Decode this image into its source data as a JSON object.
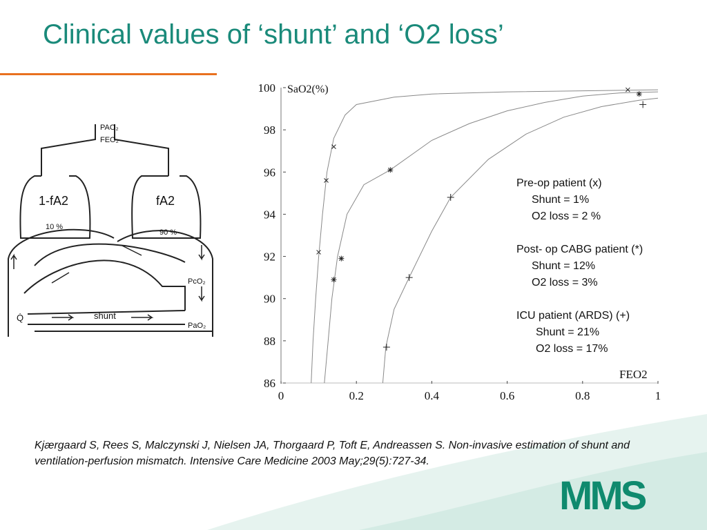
{
  "slide": {
    "title": "Clinical values of ‘shunt’ and ‘O2 loss’",
    "accent_color": "#1a8a7a",
    "rule_color": "#e8701e"
  },
  "diagram": {
    "pao2_label": "PAO₂",
    "feo2_label": "FEO₂",
    "left_compartment": "1-fA2",
    "right_compartment": "fA2",
    "left_percent": "10 %",
    "right_percent": "90 %",
    "pco2_label": "PcO₂",
    "pao2_arterial_label": "PaO₂",
    "q_label": "Q̇",
    "shunt_label": "shunt"
  },
  "legend": {
    "preop_title": "Pre-op patient (x)",
    "preop_shunt": "Shunt = 1%",
    "preop_loss": "O2 loss = 2 %",
    "postop_title": "Post- op CABG patient (*)",
    "postop_shunt": "Shunt = 12%",
    "postop_loss": "O2 loss = 3%",
    "icu_title": "ICU patient (ARDS) (+)",
    "icu_shunt": "Shunt = 21%",
    "icu_loss": "O2 loss = 17%"
  },
  "citation": "Kjærgaard S, Rees S, Malczynski J, Nielsen JA, Thorgaard P, Toft E, Andreassen S. Non-invasive estimation of shunt and ventilation-perfusion mismatch. Intensive Care Medicine 2003 May;29(5):727-34.",
  "logo_text": "MMS",
  "logo_color": "#0f8a6e",
  "chart_data": {
    "type": "scatter",
    "ylabel": "SaO2(%)",
    "xlabel": "FEO2",
    "xlim": [
      0,
      1
    ],
    "ylim": [
      86,
      100
    ],
    "xticks": [
      "0",
      "0.2",
      "0.4",
      "0.6",
      "0.8",
      "1"
    ],
    "yticks": [
      "86",
      "88",
      "90",
      "92",
      "94",
      "96",
      "98",
      "100"
    ],
    "series": [
      {
        "marker": "x",
        "points": [
          [
            0.1,
            92.2
          ],
          [
            0.12,
            95.6
          ],
          [
            0.14,
            97.2
          ],
          [
            0.92,
            99.9
          ]
        ],
        "curve": [
          [
            0.08,
            86
          ],
          [
            0.085,
            88
          ],
          [
            0.092,
            90
          ],
          [
            0.1,
            92
          ],
          [
            0.11,
            94
          ],
          [
            0.122,
            96
          ],
          [
            0.14,
            97.6
          ],
          [
            0.17,
            98.7
          ],
          [
            0.2,
            99.2
          ],
          [
            0.3,
            99.55
          ],
          [
            0.4,
            99.7
          ],
          [
            0.6,
            99.8
          ],
          [
            0.8,
            99.85
          ],
          [
            1.0,
            99.9
          ]
        ]
      },
      {
        "marker": "*",
        "points": [
          [
            0.14,
            90.9
          ],
          [
            0.16,
            91.9
          ],
          [
            0.29,
            96.1
          ],
          [
            0.95,
            99.7
          ]
        ],
        "curve": [
          [
            0.115,
            86
          ],
          [
            0.125,
            88
          ],
          [
            0.135,
            90
          ],
          [
            0.15,
            92
          ],
          [
            0.175,
            94
          ],
          [
            0.22,
            95.4
          ],
          [
            0.29,
            96.1
          ],
          [
            0.4,
            97.5
          ],
          [
            0.5,
            98.3
          ],
          [
            0.6,
            98.9
          ],
          [
            0.7,
            99.3
          ],
          [
            0.8,
            99.6
          ],
          [
            0.9,
            99.75
          ],
          [
            1.0,
            99.8
          ]
        ]
      },
      {
        "marker": "+",
        "points": [
          [
            0.28,
            87.7
          ],
          [
            0.34,
            91.0
          ],
          [
            0.45,
            94.8
          ],
          [
            0.96,
            99.2
          ]
        ],
        "curve": [
          [
            0.27,
            86
          ],
          [
            0.278,
            87.7
          ],
          [
            0.3,
            89.5
          ],
          [
            0.34,
            91.0
          ],
          [
            0.4,
            93.2
          ],
          [
            0.45,
            94.8
          ],
          [
            0.55,
            96.6
          ],
          [
            0.65,
            97.8
          ],
          [
            0.75,
            98.6
          ],
          [
            0.85,
            99.1
          ],
          [
            0.95,
            99.4
          ],
          [
            1.0,
            99.5
          ]
        ]
      }
    ]
  }
}
